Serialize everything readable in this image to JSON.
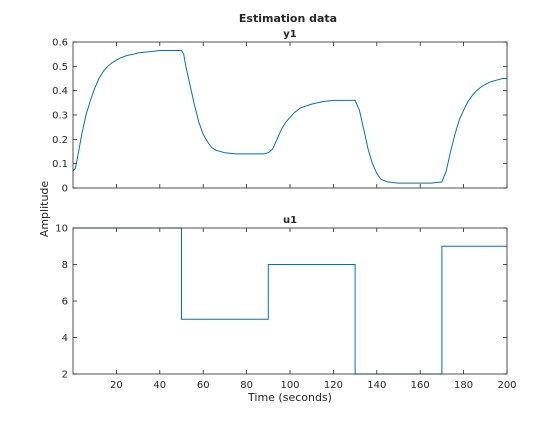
{
  "chart_data": {
    "type": "line",
    "title": "Estimation data",
    "xlabel": "Time (seconds)",
    "ylabel": "Amplitude",
    "xlim": [
      0,
      200
    ],
    "xticks": [
      20,
      40,
      60,
      80,
      100,
      120,
      140,
      160,
      180,
      200
    ],
    "line_color": "#0072bd",
    "axes_color": "#262626",
    "grid": false,
    "subplots": [
      {
        "title": "y1",
        "ylim": [
          0,
          0.6
        ],
        "yticks": [
          "0",
          "0.1",
          "0.2",
          "0.3",
          "0.4",
          "0.5",
          "0.6"
        ],
        "ytick_values": [
          0,
          0.1,
          0.2,
          0.3,
          0.4,
          0.5,
          0.6
        ],
        "series": [
          {
            "x": [
              0,
              1,
              2,
              4,
              6,
              8,
              10,
              12,
              14,
              16,
              18,
              20,
              22,
              25,
              28,
              30,
              35,
              40,
              45,
              50,
              51,
              52,
              54,
              56,
              58,
              60,
              62,
              64,
              66,
              70,
              75,
              80,
              85,
              88,
              90,
              92,
              94,
              96,
              98,
              100,
              102,
              105,
              110,
              115,
              120,
              125,
              130,
              132,
              134,
              136,
              138,
              140,
              142,
              145,
              150,
              155,
              160,
              165,
              170,
              172,
              174,
              176,
              178,
              180,
              182,
              184,
              186,
              188,
              190,
              192,
              194,
              196,
              198,
              200
            ],
            "values": [
              0.07,
              0.08,
              0.12,
              0.22,
              0.3,
              0.36,
              0.41,
              0.45,
              0.48,
              0.5,
              0.515,
              0.525,
              0.535,
              0.545,
              0.55,
              0.555,
              0.56,
              0.565,
              0.565,
              0.565,
              0.55,
              0.5,
              0.42,
              0.34,
              0.27,
              0.22,
              0.19,
              0.165,
              0.155,
              0.145,
              0.14,
              0.14,
              0.14,
              0.14,
              0.145,
              0.16,
              0.2,
              0.24,
              0.27,
              0.29,
              0.31,
              0.33,
              0.345,
              0.355,
              0.36,
              0.36,
              0.36,
              0.32,
              0.24,
              0.16,
              0.1,
              0.06,
              0.035,
              0.025,
              0.02,
              0.02,
              0.02,
              0.02,
              0.025,
              0.07,
              0.15,
              0.22,
              0.28,
              0.32,
              0.355,
              0.38,
              0.4,
              0.415,
              0.425,
              0.435,
              0.44,
              0.445,
              0.45,
              0.45
            ]
          }
        ]
      },
      {
        "title": "u1",
        "ylim": [
          2,
          10
        ],
        "yticks": [
          "2",
          "4",
          "6",
          "8",
          "10"
        ],
        "ytick_values": [
          2,
          4,
          6,
          8,
          10
        ],
        "step": true,
        "series": [
          {
            "x": [
              0,
              50,
              90,
              130,
              170,
              200
            ],
            "values": [
              10,
              5,
              8,
              2,
              9,
              9
            ]
          }
        ]
      }
    ]
  }
}
